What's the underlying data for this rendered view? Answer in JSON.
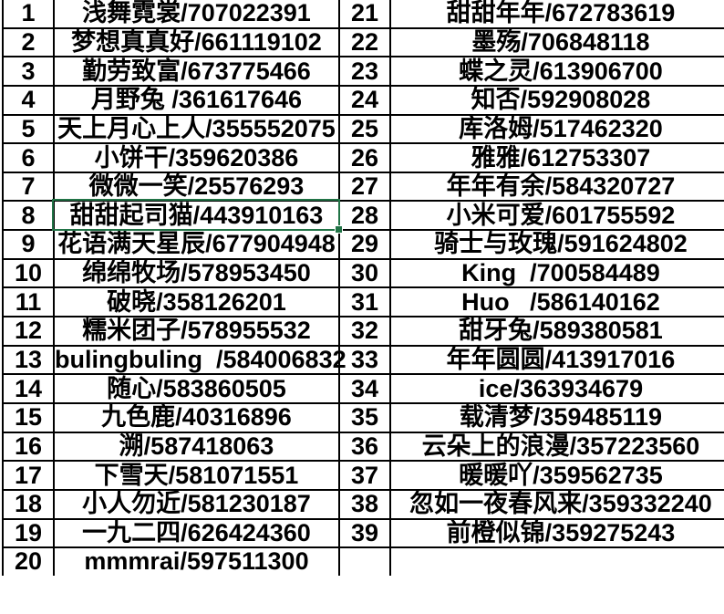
{
  "sheet": {
    "description": "spreadsheet name/id list, two numbered column pairs",
    "grid_color": "#000000",
    "background_color": "#ffffff"
  },
  "selection": {
    "selected_row_index": 8,
    "selected_value": "甜甜起司猫/443910163",
    "outline_color": "#217346"
  },
  "rows": [
    {
      "left_num": "1",
      "left_name": "浅舞霓裳/707022391",
      "right_num": "21",
      "right_name": "甜甜年年/672783619"
    },
    {
      "left_num": "2",
      "left_name": "梦想真真好/661119102",
      "right_num": "22",
      "right_name": "墨殇/706848118"
    },
    {
      "left_num": "3",
      "left_name": "勤劳致富/673775466",
      "right_num": "23",
      "right_name": "蝶之灵/613906700"
    },
    {
      "left_num": "4",
      "left_name": "月野兔 /361617646",
      "right_num": "24",
      "right_name": "知否/592908028"
    },
    {
      "left_num": "5",
      "left_name": "天上月心上人/355552075",
      "right_num": "25",
      "right_name": "库洛姆/517462320"
    },
    {
      "left_num": "6",
      "left_name": "小饼干/359620386",
      "right_num": "26",
      "right_name": "雅雅/612753307"
    },
    {
      "left_num": "7",
      "left_name": "微微一笑/25576293",
      "right_num": "27",
      "right_name": "年年有余/584320727"
    },
    {
      "left_num": "8",
      "left_name": "甜甜起司猫/443910163",
      "right_num": "28",
      "right_name": "小米可爱/601755592"
    },
    {
      "left_num": "9",
      "left_name": "花语满天星辰/677904948",
      "right_num": "29",
      "right_name": "骑士与玫瑰/591624802"
    },
    {
      "left_num": "10",
      "left_name": "绵绵牧场/578953450",
      "right_num": "30",
      "right_name": "King  /700584489"
    },
    {
      "left_num": "11",
      "left_name": "破晓/358126201",
      "right_num": "31",
      "right_name": "Huo   /586140162"
    },
    {
      "left_num": "12",
      "left_name": "糯米团子/578955532",
      "right_num": "32",
      "right_name": "甜牙兔/589380581"
    },
    {
      "left_num": "13",
      "left_name": "bulingbuling  /584006832",
      "right_num": "33",
      "right_name": "年年圆圆/413917016"
    },
    {
      "left_num": "14",
      "left_name": "随心/583860505",
      "right_num": "34",
      "right_name": "ice/363934679"
    },
    {
      "left_num": "15",
      "left_name": "九色鹿/40316896",
      "right_num": "35",
      "right_name": "载清梦/359485119"
    },
    {
      "left_num": "16",
      "left_name": "溯/587418063",
      "right_num": "36",
      "right_name": "云朵上的浪漫/357223560"
    },
    {
      "left_num": "17",
      "left_name": "下雪天/581071551",
      "right_num": "37",
      "right_name": "暖暖吖/359562735"
    },
    {
      "left_num": "18",
      "left_name": "小人勿近/581230187",
      "right_num": "38",
      "right_name": "忽如一夜春风来/359332240"
    },
    {
      "left_num": "19",
      "left_name": "一九二四/626424360",
      "right_num": "39",
      "right_name": "前橙似锦/359275243"
    },
    {
      "left_num": "20",
      "left_name": "mmmrai/597511300",
      "right_num": "",
      "right_name": ""
    }
  ]
}
